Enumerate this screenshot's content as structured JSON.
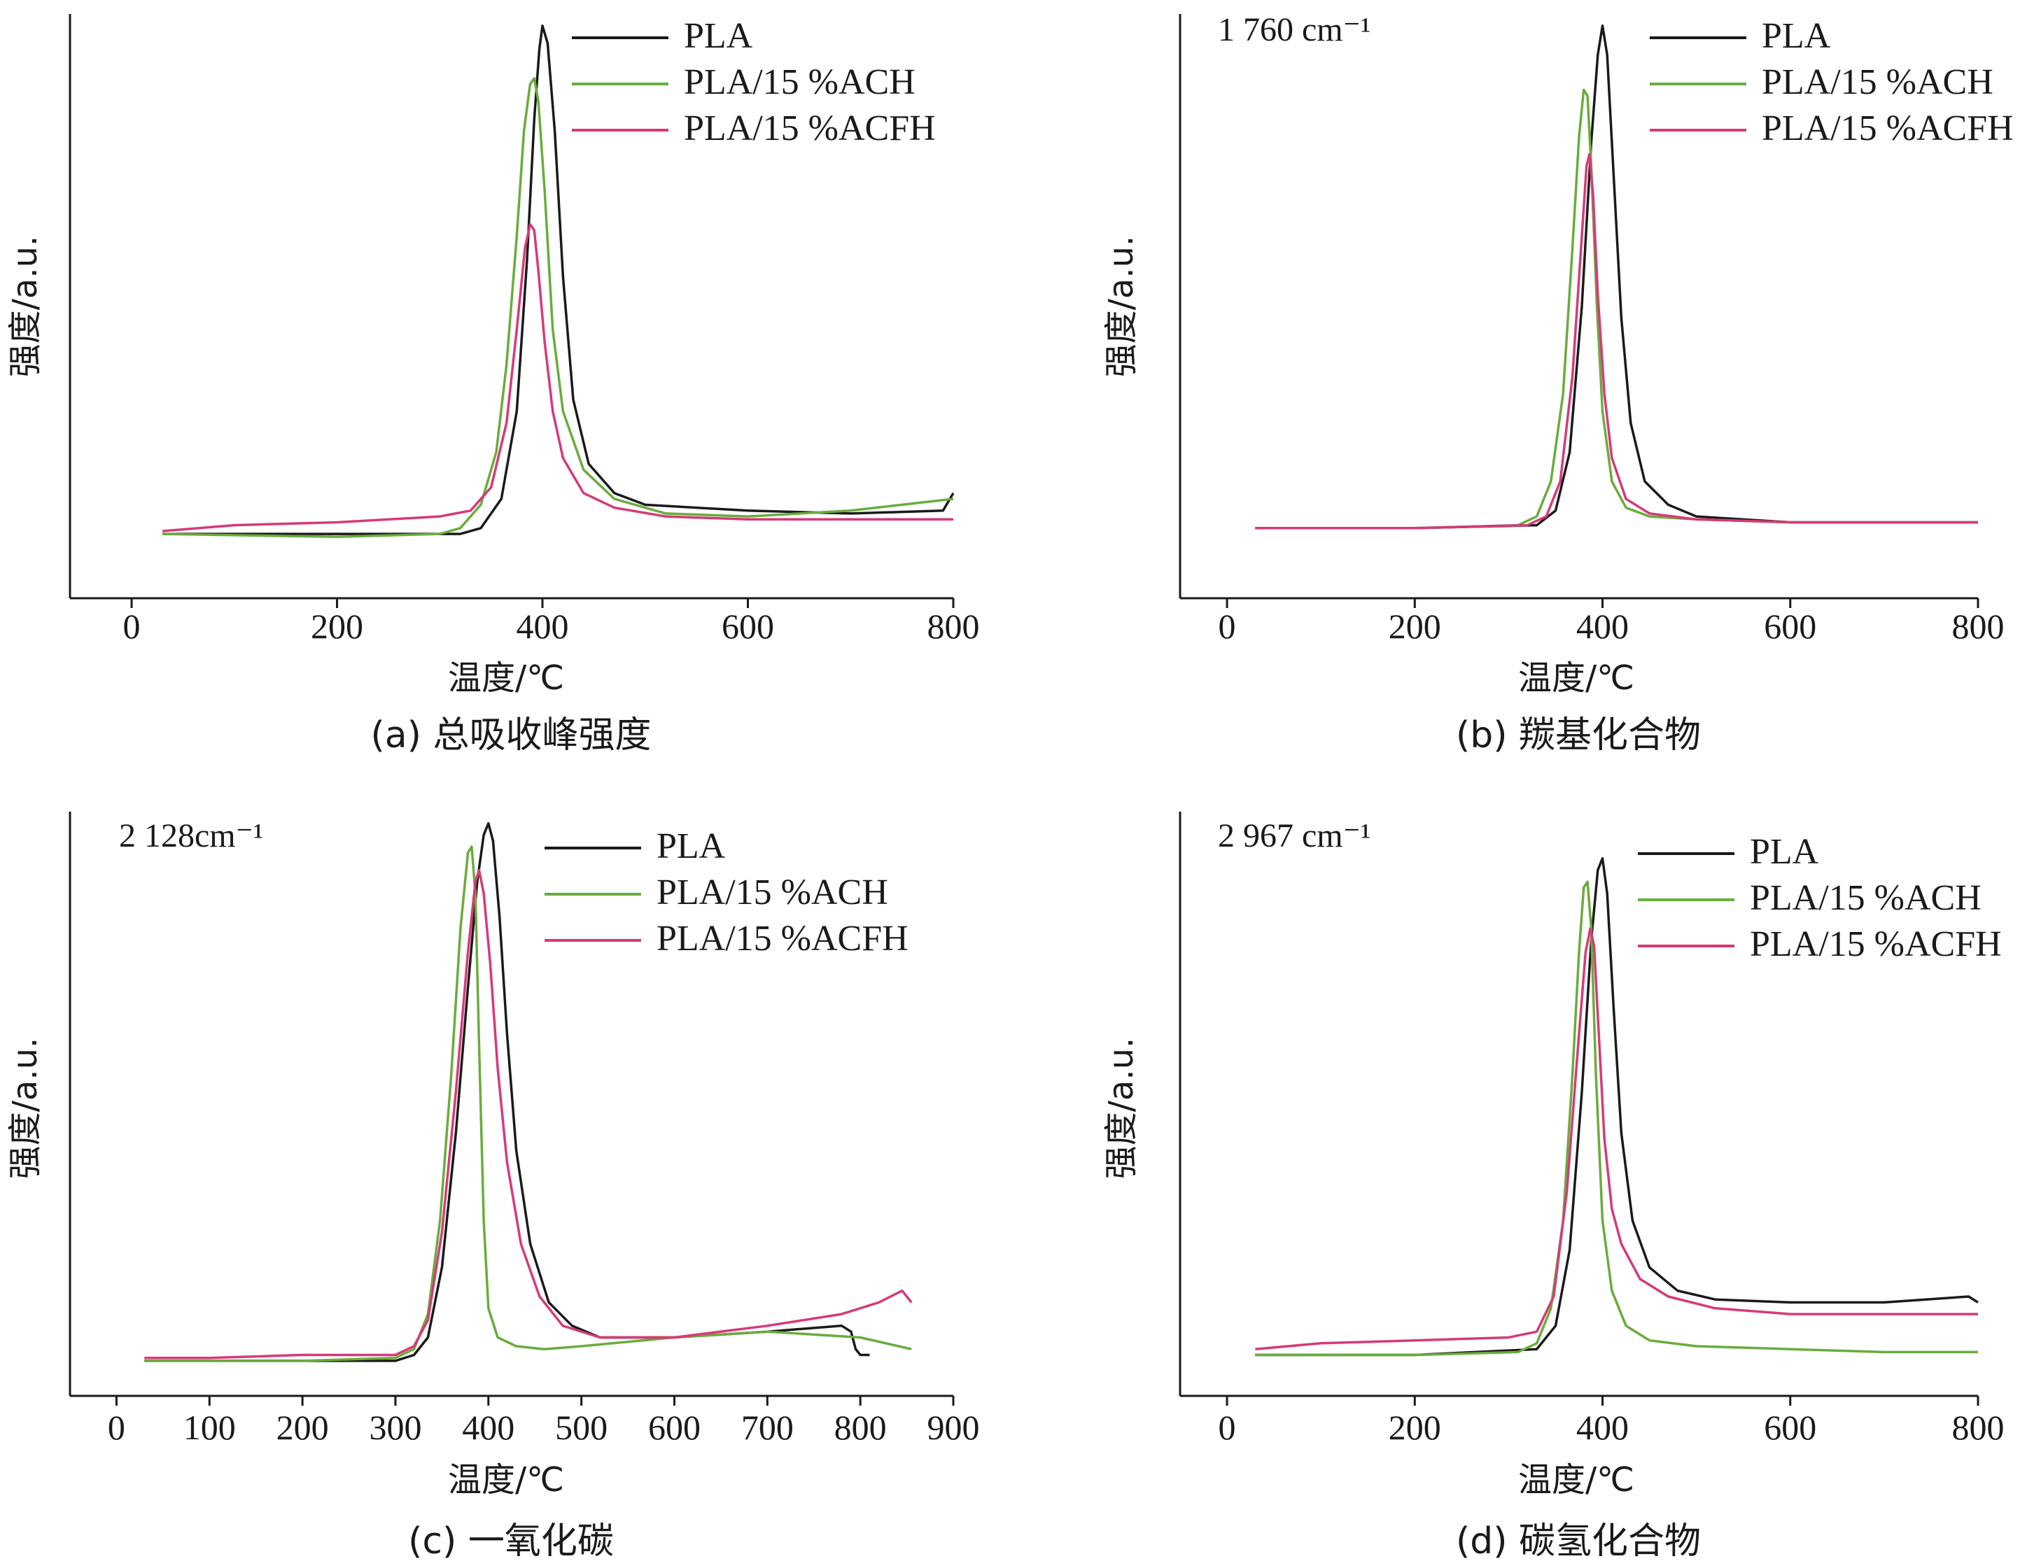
{
  "colors": {
    "PLA": "#1a1a1a",
    "PLA/15 %ACH": "#6aac3c",
    "PLA/15 %ACFH": "#d63a78",
    "axis": "#1a1a1a"
  },
  "chart_data": [
    {
      "type": "line",
      "caption": "(a) 总吸收峰强度",
      "annotation": "",
      "xlabel": "温度/℃",
      "ylabel": "强度/a.u.",
      "xlim": [
        -60,
        800
      ],
      "xticks": [
        0,
        200,
        400,
        600,
        800
      ],
      "ylim": [
        0,
        1
      ],
      "legend": "top-right",
      "series": [
        {
          "name": "PLA",
          "x": [
            30,
            200,
            320,
            340,
            360,
            375,
            385,
            392,
            397,
            400,
            405,
            412,
            420,
            430,
            445,
            470,
            500,
            600,
            700,
            790,
            800
          ],
          "y": [
            0.11,
            0.11,
            0.11,
            0.12,
            0.17,
            0.32,
            0.58,
            0.82,
            0.94,
            0.98,
            0.95,
            0.8,
            0.55,
            0.34,
            0.23,
            0.18,
            0.16,
            0.15,
            0.145,
            0.15,
            0.18
          ]
        },
        {
          "name": "PLA/15 %ACH",
          "x": [
            30,
            200,
            300,
            320,
            340,
            355,
            365,
            375,
            382,
            388,
            392,
            396,
            402,
            410,
            420,
            440,
            470,
            520,
            600,
            700,
            800
          ],
          "y": [
            0.11,
            0.105,
            0.11,
            0.12,
            0.16,
            0.25,
            0.4,
            0.62,
            0.8,
            0.88,
            0.89,
            0.85,
            0.7,
            0.46,
            0.32,
            0.22,
            0.17,
            0.145,
            0.14,
            0.15,
            0.17
          ]
        },
        {
          "name": "PLA/15 %ACFH",
          "x": [
            30,
            100,
            200,
            300,
            330,
            350,
            365,
            375,
            383,
            388,
            392,
            396,
            402,
            410,
            420,
            440,
            470,
            520,
            600,
            700,
            800
          ],
          "y": [
            0.115,
            0.125,
            0.13,
            0.14,
            0.15,
            0.19,
            0.3,
            0.46,
            0.6,
            0.64,
            0.63,
            0.56,
            0.44,
            0.32,
            0.24,
            0.18,
            0.155,
            0.14,
            0.135,
            0.135,
            0.135
          ]
        }
      ]
    },
    {
      "type": "line",
      "caption": "(b) 羰基化合物",
      "annotation": "1 760 cm⁻¹",
      "xlabel": "温度/℃",
      "ylabel": "强度/a.u.",
      "xlim": [
        -50,
        800
      ],
      "xticks": [
        0,
        200,
        400,
        600,
        800
      ],
      "ylim": [
        0,
        1
      ],
      "legend": "top-right",
      "series": [
        {
          "name": "PLA",
          "x": [
            30,
            200,
            330,
            350,
            365,
            378,
            388,
            395,
            400,
            405,
            412,
            420,
            430,
            445,
            470,
            500,
            600,
            700,
            800
          ],
          "y": [
            0.12,
            0.12,
            0.125,
            0.15,
            0.25,
            0.5,
            0.78,
            0.93,
            0.98,
            0.93,
            0.72,
            0.48,
            0.3,
            0.2,
            0.16,
            0.14,
            0.13,
            0.13,
            0.13
          ]
        },
        {
          "name": "PLA/15 %ACH",
          "x": [
            30,
            200,
            310,
            330,
            345,
            358,
            368,
            375,
            380,
            384,
            388,
            394,
            400,
            410,
            425,
            450,
            500,
            600,
            700,
            800
          ],
          "y": [
            0.12,
            0.12,
            0.125,
            0.14,
            0.2,
            0.35,
            0.6,
            0.79,
            0.87,
            0.86,
            0.74,
            0.5,
            0.32,
            0.2,
            0.155,
            0.14,
            0.135,
            0.13,
            0.13,
            0.13
          ]
        },
        {
          "name": "PLA/15 %ACFH",
          "x": [
            30,
            200,
            320,
            340,
            355,
            368,
            378,
            383,
            386,
            390,
            395,
            402,
            410,
            425,
            450,
            500,
            600,
            700,
            800
          ],
          "y": [
            0.12,
            0.12,
            0.125,
            0.14,
            0.2,
            0.38,
            0.62,
            0.74,
            0.76,
            0.69,
            0.52,
            0.35,
            0.24,
            0.17,
            0.145,
            0.135,
            0.13,
            0.13,
            0.13
          ]
        }
      ]
    },
    {
      "type": "line",
      "caption": "(c) 一氧化碳",
      "annotation": "2 128cm⁻¹",
      "xlabel": "温度/℃",
      "ylabel": "强度/a.u.",
      "xlim": [
        -50,
        900
      ],
      "xticks": [
        0,
        100,
        200,
        300,
        400,
        500,
        600,
        700,
        800,
        900
      ],
      "ylim": [
        0,
        1
      ],
      "legend": "top-right",
      "series": [
        {
          "name": "PLA",
          "x": [
            30,
            200,
            300,
            320,
            335,
            350,
            365,
            378,
            388,
            395,
            400,
            405,
            412,
            420,
            430,
            445,
            465,
            490,
            520,
            560,
            600,
            700,
            780,
            790,
            795,
            800,
            810
          ],
          "y": [
            0.06,
            0.06,
            0.06,
            0.07,
            0.1,
            0.22,
            0.45,
            0.7,
            0.88,
            0.96,
            0.98,
            0.95,
            0.82,
            0.62,
            0.42,
            0.26,
            0.16,
            0.12,
            0.1,
            0.1,
            0.1,
            0.11,
            0.12,
            0.11,
            0.08,
            0.07,
            0.07
          ]
        },
        {
          "name": "PLA/15 %ACH",
          "x": [
            30,
            200,
            300,
            320,
            335,
            348,
            360,
            370,
            378,
            382,
            386,
            390,
            395,
            400,
            410,
            430,
            460,
            500,
            600,
            700,
            800,
            855
          ],
          "y": [
            0.06,
            0.06,
            0.065,
            0.08,
            0.14,
            0.3,
            0.55,
            0.8,
            0.93,
            0.94,
            0.86,
            0.6,
            0.3,
            0.15,
            0.1,
            0.085,
            0.08,
            0.085,
            0.1,
            0.11,
            0.1,
            0.08
          ]
        },
        {
          "name": "PLA/15 %ACFH",
          "x": [
            30,
            100,
            200,
            300,
            320,
            335,
            350,
            365,
            378,
            386,
            390,
            395,
            402,
            410,
            420,
            435,
            455,
            480,
            520,
            600,
            700,
            780,
            820,
            845,
            855
          ],
          "y": [
            0.065,
            0.065,
            0.07,
            0.07,
            0.085,
            0.13,
            0.28,
            0.52,
            0.76,
            0.88,
            0.9,
            0.86,
            0.74,
            0.56,
            0.4,
            0.26,
            0.17,
            0.12,
            0.1,
            0.1,
            0.12,
            0.14,
            0.16,
            0.18,
            0.16
          ]
        }
      ]
    },
    {
      "type": "line",
      "caption": "(d) 碳氢化合物",
      "annotation": "2 967 cm⁻¹",
      "xlabel": "温度/℃",
      "ylabel": "强度/a.u.",
      "xlim": [
        -50,
        800
      ],
      "xticks": [
        0,
        200,
        400,
        600,
        800
      ],
      "ylim": [
        0,
        1
      ],
      "legend": "top-right",
      "series": [
        {
          "name": "PLA",
          "x": [
            30,
            200,
            330,
            350,
            365,
            378,
            388,
            395,
            400,
            405,
            412,
            420,
            432,
            450,
            480,
            520,
            600,
            700,
            790,
            800
          ],
          "y": [
            0.07,
            0.07,
            0.08,
            0.12,
            0.25,
            0.52,
            0.78,
            0.9,
            0.92,
            0.86,
            0.66,
            0.45,
            0.3,
            0.22,
            0.18,
            0.165,
            0.16,
            0.16,
            0.17,
            0.16
          ]
        },
        {
          "name": "PLA/15 %ACH",
          "x": [
            30,
            200,
            310,
            330,
            345,
            358,
            368,
            375,
            380,
            384,
            388,
            393,
            400,
            410,
            425,
            450,
            500,
            600,
            700,
            800
          ],
          "y": [
            0.07,
            0.07,
            0.075,
            0.09,
            0.15,
            0.3,
            0.55,
            0.76,
            0.87,
            0.88,
            0.8,
            0.55,
            0.3,
            0.18,
            0.12,
            0.095,
            0.085,
            0.08,
            0.075,
            0.075
          ]
        },
        {
          "name": "PLA/15 %ACFH",
          "x": [
            30,
            100,
            200,
            300,
            330,
            348,
            362,
            374,
            382,
            387,
            391,
            396,
            402,
            410,
            420,
            440,
            470,
            520,
            600,
            700,
            800
          ],
          "y": [
            0.08,
            0.09,
            0.095,
            0.1,
            0.11,
            0.17,
            0.35,
            0.6,
            0.76,
            0.8,
            0.77,
            0.62,
            0.44,
            0.32,
            0.26,
            0.2,
            0.17,
            0.15,
            0.14,
            0.14,
            0.14
          ]
        }
      ]
    }
  ]
}
